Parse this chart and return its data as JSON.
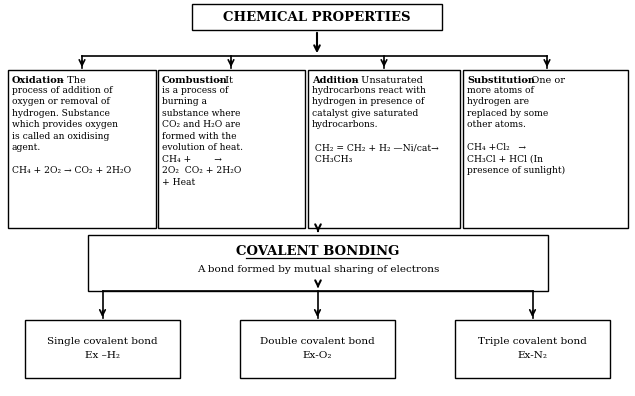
{
  "title": "CHEMICAL PROPERTIES",
  "covalent_title": "COVALENT BONDING",
  "covalent_subtitle": "A bond formed by mutual sharing of electrons",
  "ox_bold": "Oxidation",
  "ox_rest": " – The",
  "ox_body": "process of addition of\noxygen or removal of\nhydrogen. Substance\nwhich provides oxygen\nis called an oxidising\nagent.\n\nCH₄ + 2O₂ → CO₂ + 2H₂O",
  "co_bold": "Combustion",
  "co_rest": " – It",
  "co_body": "is a process of\nburning a\nsubstance where\nCO₂ and H₂O are\nformed with the\nevolution of heat.\nCH₄ +        →\n2O₂  CO₂ + 2H₂O\n+ Heat",
  "ad_bold": "Addition",
  "ad_rest": " – Unsaturated",
  "ad_body": "hydrocarbons react with\nhydrogen in presence of\ncatalyst give saturated\nhydrocarbons.\n\n CH₂ = CH₂ + H₂ —Ni/cat→\n CH₃CH₃",
  "su_bold": "Substitution",
  "su_rest": "- One or",
  "su_body": "more atoms of\nhydrogen are\nreplaced by some\nother atoms.\n\nCH₄ +Cl₂   →\nCH₃Cl + HCl (In\npresence of sunlight)",
  "bot_single": "Single covalent bond\nEx –H₂",
  "bot_double": "Double covalent bond\nEx-O₂",
  "bot_triple": "Triple covalent bond\nEx-N₂",
  "bg_color": "#ffffff",
  "text_color": "#000000"
}
